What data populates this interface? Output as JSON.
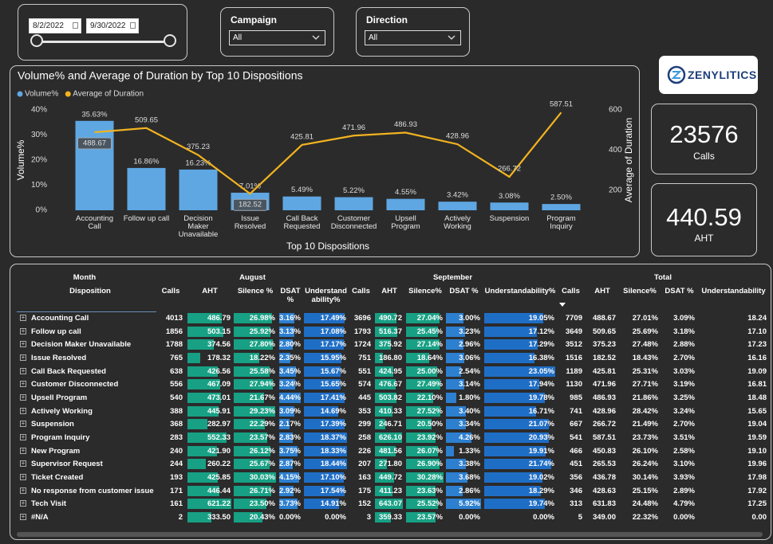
{
  "filters": {
    "start_date": "8/2/2022",
    "end_date": "9/30/2022",
    "campaign": {
      "label": "Campaign",
      "value": "All"
    },
    "direction": {
      "label": "Direction",
      "value": "All"
    }
  },
  "logo": {
    "name": "ZENYLITICS"
  },
  "kpis": [
    {
      "value": 23576,
      "label": "Calls"
    },
    {
      "value": 440.59,
      "label": "AHT"
    }
  ],
  "chart_data": {
    "type": "bar",
    "title": "Volume% and Average of Duration by Top 10 Dispositions",
    "x_label": "Top 10 Dispositions",
    "y_label": "Volume%",
    "y2_label": "Average of Duration",
    "categories": [
      "Accounting Call",
      "Follow up call",
      "Decision Maker Unavailable",
      "Issue Resolved",
      "Call Back Requested",
      "Customer Disconnected",
      "Upsell Program",
      "Actively Working",
      "Suspension",
      "Program Inquiry"
    ],
    "series": [
      {
        "name": "Volume%",
        "color": "#5fa7e2",
        "values": [
          35.63,
          16.86,
          16.23,
          7.01,
          5.49,
          5.22,
          4.55,
          3.42,
          3.08,
          2.5
        ],
        "value_labels": [
          "35.63%",
          "16.86%",
          "16.23%",
          "7.01%",
          "5.49%",
          "5.22%",
          "4.55%",
          "3.42%",
          "3.08%",
          "2.50%"
        ]
      },
      {
        "name": "Average of Duration",
        "color": "#f2b320",
        "type": "line",
        "axis": "y2",
        "values": [
          488.67,
          509.65,
          375.23,
          182.52,
          425.81,
          471.96,
          486.93,
          428.96,
          266.72,
          587.51
        ]
      }
    ],
    "ylim": [
      0,
      40
    ],
    "yticks": [
      {
        "value": 0,
        "label": "0%"
      },
      {
        "value": 10,
        "label": "10%"
      },
      {
        "value": 20,
        "label": "20%"
      },
      {
        "value": 30,
        "label": "30%"
      },
      {
        "value": 40,
        "label": "40%"
      }
    ],
    "y2lim": [
      100,
      600
    ],
    "y2ticks": [
      200,
      400,
      600
    ],
    "legend": "top-left"
  },
  "table": {
    "month_header": "Month",
    "row_header": "Disposition",
    "groups": [
      {
        "name": "August",
        "columns": [
          "Calls",
          "AHT",
          "Silence %",
          "DSAT %",
          "Understandability%"
        ]
      },
      {
        "name": "September",
        "columns": [
          "Calls",
          "AHT",
          "Silence%",
          "DSAT %",
          "Understandability%"
        ]
      },
      {
        "name": "Total",
        "columns": [
          "Calls",
          "AHT",
          "Silence%",
          "DSAT %",
          "Understandability"
        ]
      }
    ],
    "rows": [
      {
        "label": "Accounting Call",
        "cells": [
          "4013",
          "486.79",
          "26.98%",
          "3.16%",
          "17.49%",
          "3696",
          "490.72",
          "27.04%",
          "3.00%",
          "19.05%",
          "7709",
          "488.67",
          "27.01%",
          "3.09%",
          "18.24"
        ]
      },
      {
        "label": "Follow up call",
        "cells": [
          "1856",
          "503.15",
          "25.92%",
          "3.13%",
          "17.08%",
          "1793",
          "516.37",
          "25.45%",
          "3.23%",
          "17.12%",
          "3649",
          "509.65",
          "25.69%",
          "3.18%",
          "17.10"
        ]
      },
      {
        "label": "Decision Maker Unavailable",
        "cells": [
          "1788",
          "374.56",
          "27.80%",
          "2.80%",
          "17.17%",
          "1724",
          "375.92",
          "27.14%",
          "2.96%",
          "17.29%",
          "3512",
          "375.23",
          "27.48%",
          "2.88%",
          "17.23"
        ]
      },
      {
        "label": "Issue Resolved",
        "cells": [
          "765",
          "178.32",
          "18.22%",
          "2.35%",
          "15.95%",
          "751",
          "186.80",
          "18.64%",
          "3.06%",
          "16.38%",
          "1516",
          "182.52",
          "18.43%",
          "2.70%",
          "16.16"
        ]
      },
      {
        "label": "Call Back Requested",
        "cells": [
          "638",
          "426.56",
          "25.58%",
          "3.45%",
          "15.67%",
          "551",
          "424.95",
          "25.00%",
          "2.54%",
          "23.05%",
          "1189",
          "425.81",
          "25.31%",
          "3.03%",
          "19.09"
        ]
      },
      {
        "label": "Customer Disconnected",
        "cells": [
          "556",
          "467.09",
          "27.94%",
          "3.24%",
          "15.65%",
          "574",
          "476.67",
          "27.49%",
          "3.14%",
          "17.94%",
          "1130",
          "471.96",
          "27.71%",
          "3.19%",
          "16.81"
        ]
      },
      {
        "label": "Upsell Program",
        "cells": [
          "540",
          "473.01",
          "21.67%",
          "4.44%",
          "17.41%",
          "445",
          "503.82",
          "22.10%",
          "1.80%",
          "19.78%",
          "985",
          "486.93",
          "21.86%",
          "3.25%",
          "18.48"
        ]
      },
      {
        "label": "Actively Working",
        "cells": [
          "388",
          "445.91",
          "29.23%",
          "3.09%",
          "14.69%",
          "353",
          "410.33",
          "27.52%",
          "3.40%",
          "16.71%",
          "741",
          "428.96",
          "28.42%",
          "3.24%",
          "15.65"
        ]
      },
      {
        "label": "Suspension",
        "cells": [
          "368",
          "282.97",
          "22.29%",
          "2.17%",
          "17.39%",
          "299",
          "246.71",
          "20.50%",
          "3.34%",
          "21.07%",
          "667",
          "266.72",
          "21.49%",
          "2.70%",
          "19.04"
        ]
      },
      {
        "label": "Program Inquiry",
        "cells": [
          "283",
          "552.33",
          "23.57%",
          "2.83%",
          "18.37%",
          "258",
          "626.10",
          "23.92%",
          "4.26%",
          "20.93%",
          "541",
          "587.51",
          "23.73%",
          "3.51%",
          "19.59"
        ]
      },
      {
        "label": "New Program",
        "cells": [
          "240",
          "421.90",
          "26.12%",
          "3.75%",
          "18.33%",
          "226",
          "481.56",
          "26.07%",
          "1.33%",
          "19.91%",
          "466",
          "450.83",
          "26.10%",
          "2.58%",
          "19.10"
        ]
      },
      {
        "label": "Supervisor Request",
        "cells": [
          "244",
          "260.22",
          "25.67%",
          "2.87%",
          "18.44%",
          "207",
          "271.80",
          "26.90%",
          "3.38%",
          "21.74%",
          "451",
          "265.53",
          "26.24%",
          "3.10%",
          "19.96"
        ]
      },
      {
        "label": "Ticket Created",
        "cells": [
          "193",
          "425.85",
          "30.03%",
          "4.15%",
          "17.10%",
          "163",
          "449.72",
          "30.28%",
          "3.68%",
          "19.02%",
          "356",
          "436.78",
          "30.14%",
          "3.93%",
          "17.98"
        ]
      },
      {
        "label": "No response from customer issue",
        "cells": [
          "171",
          "446.44",
          "26.71%",
          "2.92%",
          "17.54%",
          "175",
          "411.23",
          "23.63%",
          "2.86%",
          "18.29%",
          "346",
          "428.63",
          "25.15%",
          "2.89%",
          "17.92"
        ]
      },
      {
        "label": "Tech Visit",
        "cells": [
          "161",
          "621.22",
          "23.50%",
          "3.73%",
          "14.91%",
          "152",
          "643.07",
          "25.52%",
          "5.92%",
          "19.74%",
          "313",
          "631.83",
          "24.48%",
          "4.79%",
          "17.25"
        ]
      },
      {
        "label": "#N/A",
        "cells": [
          "2",
          "333.50",
          "20.43%",
          "0.00%",
          "0.00%",
          "3",
          "359.33",
          "23.57%",
          "0.00%",
          "0.00%",
          "5",
          "349.00",
          "22.32%",
          "0.00%",
          "0.00"
        ]
      }
    ]
  }
}
